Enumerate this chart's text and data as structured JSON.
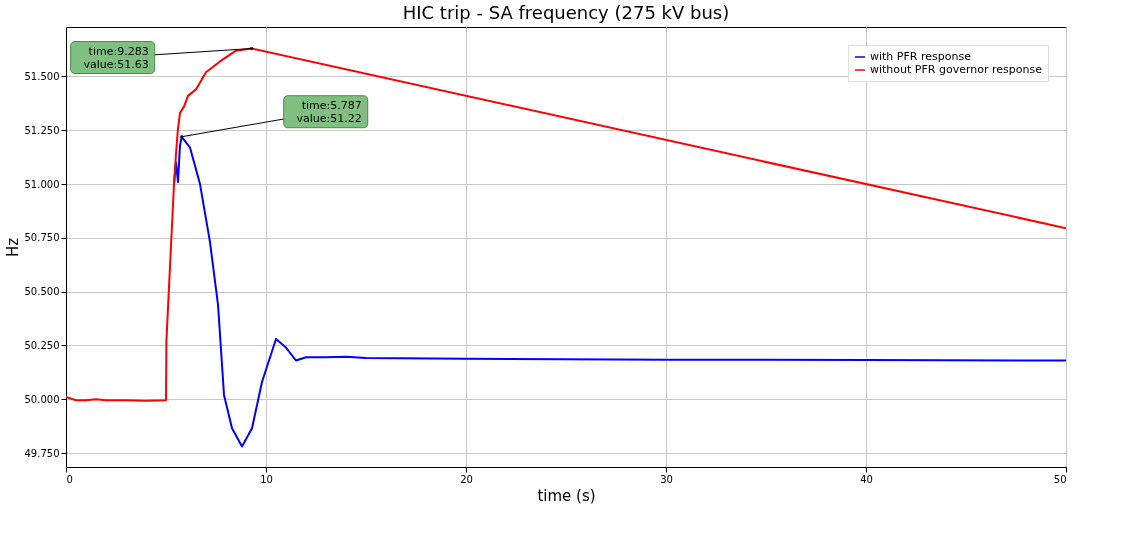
{
  "chart_data": {
    "type": "line",
    "title": "HIC trip - SA frequency (275 kV bus)",
    "xlabel": "time (s)",
    "ylabel": "Hz",
    "xlim": [
      0,
      50
    ],
    "ylim": [
      49.685,
      51.73
    ],
    "xticks": [
      0,
      10,
      20,
      30,
      40,
      50
    ],
    "yticks": [
      {
        "value": 49.75,
        "label": "49.750"
      },
      {
        "value": 50.0,
        "label": "50.000"
      },
      {
        "value": 50.25,
        "label": "50.250"
      },
      {
        "value": 50.5,
        "label": "50.500"
      },
      {
        "value": 50.75,
        "label": "50.750"
      },
      {
        "value": 51.0,
        "label": "51.000"
      },
      {
        "value": 51.25,
        "label": "51.250"
      },
      {
        "value": 51.5,
        "label": "51.500"
      }
    ],
    "grid": true,
    "legend": "top right",
    "line_style": "solid",
    "marker": "none",
    "series": [
      {
        "name": "with PFR response",
        "color": "#0000ff",
        "x": [
          5.4,
          5.5,
          5.6,
          5.7,
          5.787,
          5.95,
          6.2,
          6.7,
          7.2,
          7.6,
          7.9,
          8.3,
          8.8,
          9.3,
          9.8,
          10.5,
          11,
          11.5,
          12,
          13,
          14,
          15,
          20,
          30,
          40,
          50
        ],
        "values": [
          51.0,
          51.1,
          51.01,
          51.18,
          51.22,
          51.2,
          51.17,
          51.0,
          50.73,
          50.44,
          50.02,
          49.865,
          49.78,
          49.865,
          50.08,
          50.28,
          50.24,
          50.18,
          50.195,
          50.195,
          50.197,
          50.192,
          50.188,
          50.184,
          50.182,
          50.18
        ]
      },
      {
        "name": "without PFR governor response",
        "color": "#ff0000",
        "x": [
          0,
          0.5,
          1,
          1.5,
          2,
          3,
          4,
          5.0,
          5.02,
          5.15,
          5.4,
          5.5,
          5.6,
          5.7,
          5.9,
          6.1,
          6.5,
          7.0,
          7.7,
          8.5,
          9.283,
          50
        ],
        "values": [
          50.01,
          49.995,
          49.995,
          50.0,
          49.995,
          49.995,
          49.993,
          49.995,
          50.27,
          50.52,
          51.0,
          51.14,
          51.26,
          51.33,
          51.36,
          51.41,
          51.44,
          51.52,
          51.57,
          51.62,
          51.63,
          50.795
        ]
      }
    ],
    "annotations": [
      {
        "text": "time:9.283\nvalue:51.63",
        "x": 9.283,
        "y": 51.63
      },
      {
        "text": "time:5.787\nvalue:51.22",
        "x": 5.787,
        "y": 51.22
      }
    ]
  }
}
